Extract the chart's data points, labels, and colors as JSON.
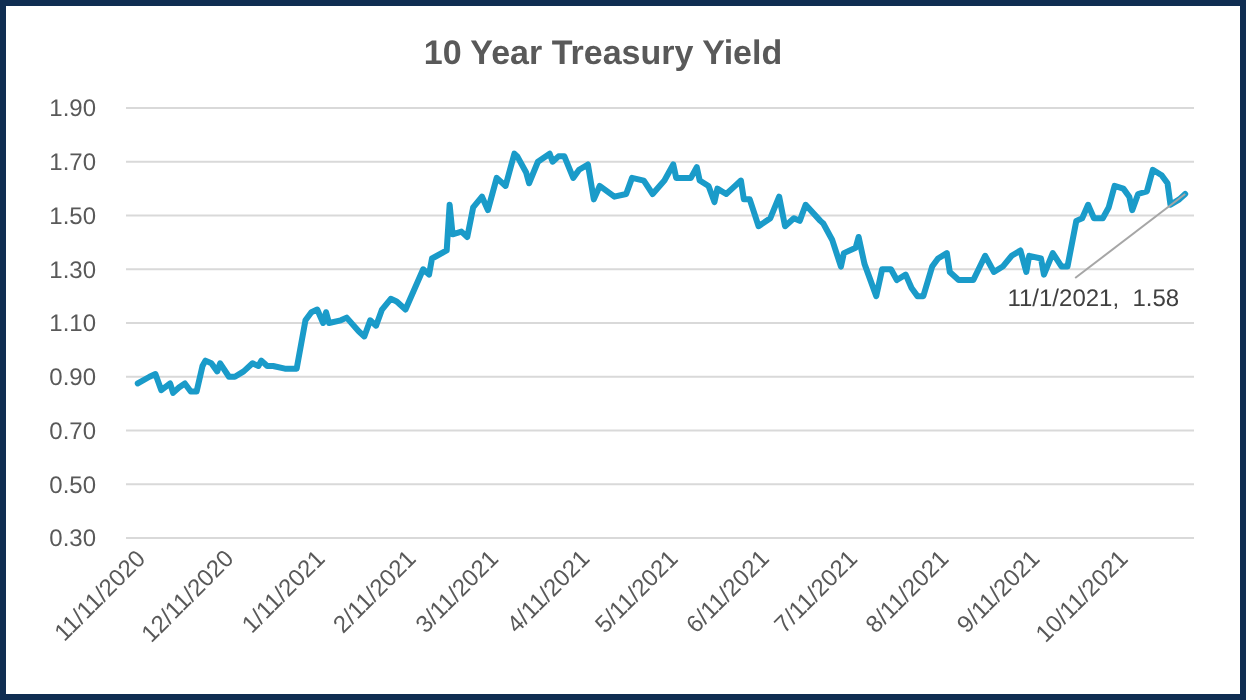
{
  "chart_data": {
    "type": "line",
    "title": "10 Year Treasury Yield",
    "x": [
      "2020-11-10",
      "2020-11-14",
      "2020-11-16",
      "2020-11-18",
      "2020-11-21",
      "2020-11-22",
      "2020-11-24",
      "2020-11-26",
      "2020-11-28",
      "2020-11-30",
      "2020-12-02",
      "2020-12-03",
      "2020-12-05",
      "2020-12-07",
      "2020-12-08",
      "2020-12-11",
      "2020-12-13",
      "2020-12-16",
      "2020-12-19",
      "2020-12-21",
      "2020-12-22",
      "2020-12-24",
      "2020-12-26",
      "2020-12-30",
      "2021-01-03",
      "2021-01-06",
      "2021-01-08",
      "2021-01-10",
      "2021-01-12",
      "2021-01-13",
      "2021-01-14",
      "2021-01-18",
      "2021-01-20",
      "2021-01-24",
      "2021-01-26",
      "2021-01-28",
      "2021-01-30",
      "2021-02-01",
      "2021-02-04",
      "2021-02-06",
      "2021-02-09",
      "2021-02-15",
      "2021-02-17",
      "2021-02-18",
      "2021-02-23",
      "2021-02-24",
      "2021-02-25",
      "2021-02-28",
      "2021-03-02",
      "2021-03-04",
      "2021-03-07",
      "2021-03-09",
      "2021-03-12",
      "2021-03-15",
      "2021-03-18",
      "2021-03-19",
      "2021-03-22",
      "2021-03-23",
      "2021-03-26",
      "2021-03-30",
      "2021-03-31",
      "2021-04-02",
      "2021-04-04",
      "2021-04-07",
      "2021-04-09",
      "2021-04-12",
      "2021-04-14",
      "2021-04-16",
      "2021-04-21",
      "2021-04-25",
      "2021-04-27",
      "2021-05-01",
      "2021-05-04",
      "2021-05-08",
      "2021-05-11",
      "2021-05-12",
      "2021-05-17",
      "2021-05-19",
      "2021-05-20",
      "2021-05-23",
      "2021-05-25",
      "2021-05-26",
      "2021-05-29",
      "2021-05-31",
      "2021-06-03",
      "2021-06-04",
      "2021-06-06",
      "2021-06-09",
      "2021-06-13",
      "2021-06-16",
      "2021-06-18",
      "2021-06-21",
      "2021-06-23",
      "2021-06-25",
      "2021-06-30",
      "2021-07-01",
      "2021-07-04",
      "2021-07-07",
      "2021-07-08",
      "2021-07-12",
      "2021-07-13",
      "2021-07-15",
      "2021-07-19",
      "2021-07-21",
      "2021-07-24",
      "2021-07-26",
      "2021-07-29",
      "2021-07-31",
      "2021-08-02",
      "2021-08-04",
      "2021-08-07",
      "2021-08-09",
      "2021-08-12",
      "2021-08-13",
      "2021-08-16",
      "2021-08-18",
      "2021-08-21",
      "2021-08-25",
      "2021-08-28",
      "2021-08-31",
      "2021-09-03",
      "2021-09-06",
      "2021-09-08",
      "2021-09-09",
      "2021-09-13",
      "2021-09-14",
      "2021-09-17",
      "2021-09-20",
      "2021-09-22",
      "2021-09-25",
      "2021-09-27",
      "2021-09-29",
      "2021-10-01",
      "2021-10-04",
      "2021-10-06",
      "2021-10-08",
      "2021-10-11",
      "2021-10-13",
      "2021-10-14",
      "2021-10-16",
      "2021-10-19",
      "2021-10-21",
      "2021-10-24",
      "2021-10-26",
      "2021-10-27",
      "2021-10-30",
      "2021-11-01"
    ],
    "series": [
      {
        "color": "#1a9bc9",
        "values": [
          0.875,
          0.9,
          0.91,
          0.85,
          0.875,
          0.84,
          0.86,
          0.875,
          0.845,
          0.845,
          0.94,
          0.96,
          0.95,
          0.92,
          0.95,
          0.9,
          0.9,
          0.92,
          0.95,
          0.94,
          0.96,
          0.94,
          0.94,
          0.93,
          0.93,
          1.11,
          1.14,
          1.15,
          1.1,
          1.14,
          1.1,
          1.11,
          1.12,
          1.07,
          1.05,
          1.11,
          1.09,
          1.15,
          1.19,
          1.18,
          1.15,
          1.3,
          1.28,
          1.34,
          1.37,
          1.54,
          1.43,
          1.44,
          1.42,
          1.53,
          1.57,
          1.52,
          1.64,
          1.61,
          1.73,
          1.72,
          1.66,
          1.62,
          1.7,
          1.73,
          1.7,
          1.72,
          1.72,
          1.64,
          1.67,
          1.69,
          1.56,
          1.61,
          1.57,
          1.58,
          1.64,
          1.63,
          1.58,
          1.63,
          1.69,
          1.64,
          1.64,
          1.68,
          1.63,
          1.61,
          1.55,
          1.6,
          1.58,
          1.6,
          1.63,
          1.56,
          1.56,
          1.46,
          1.49,
          1.57,
          1.46,
          1.49,
          1.48,
          1.54,
          1.48,
          1.47,
          1.41,
          1.31,
          1.36,
          1.38,
          1.42,
          1.32,
          1.2,
          1.3,
          1.3,
          1.26,
          1.28,
          1.23,
          1.2,
          1.2,
          1.31,
          1.34,
          1.36,
          1.29,
          1.26,
          1.26,
          1.26,
          1.35,
          1.29,
          1.31,
          1.35,
          1.37,
          1.29,
          1.35,
          1.34,
          1.28,
          1.36,
          1.31,
          1.31,
          1.48,
          1.49,
          1.54,
          1.49,
          1.49,
          1.53,
          1.61,
          1.6,
          1.57,
          1.52,
          1.58,
          1.59,
          1.67,
          1.65,
          1.62,
          1.54,
          1.56,
          1.58
        ]
      }
    ],
    "xlim": [
      "2020-11-06",
      "2021-11-04"
    ],
    "xticks": [
      {
        "value": "2020-11-11",
        "label": "11/11/2020"
      },
      {
        "value": "2020-12-11",
        "label": "12/11/2020"
      },
      {
        "value": "2021-01-11",
        "label": "1/11/2021"
      },
      {
        "value": "2021-02-11",
        "label": "2/11/2021"
      },
      {
        "value": "2021-03-11",
        "label": "3/11/2021"
      },
      {
        "value": "2021-04-11",
        "label": "4/11/2021"
      },
      {
        "value": "2021-05-11",
        "label": "5/11/2021"
      },
      {
        "value": "2021-06-11",
        "label": "6/11/2021"
      },
      {
        "value": "2021-07-11",
        "label": "7/11/2021"
      },
      {
        "value": "2021-08-11",
        "label": "8/11/2021"
      },
      {
        "value": "2021-09-11",
        "label": "9/11/2021"
      },
      {
        "value": "2021-10-11",
        "label": "10/11/2021"
      }
    ],
    "ylim": [
      0.3,
      1.9
    ],
    "yticks": [
      {
        "value": 0.3,
        "label": "0.30"
      },
      {
        "value": 0.5,
        "label": "0.50"
      },
      {
        "value": 0.7,
        "label": "0.70"
      },
      {
        "value": 0.9,
        "label": "0.90"
      },
      {
        "value": 1.1,
        "label": "1.10"
      },
      {
        "value": 1.3,
        "label": "1.30"
      },
      {
        "value": 1.5,
        "label": "1.50"
      },
      {
        "value": 1.7,
        "label": "1.70"
      },
      {
        "value": 1.9,
        "label": "1.90"
      }
    ],
    "grid": "y",
    "annotations": [
      {
        "text": "11/1/2021,  1.58",
        "x": "2021-11-01",
        "y": 1.58
      }
    ]
  }
}
